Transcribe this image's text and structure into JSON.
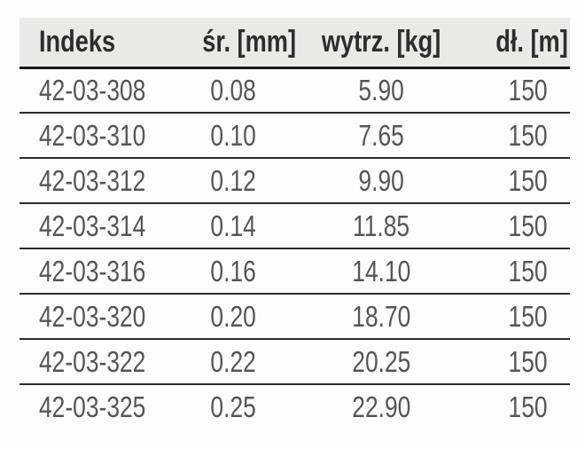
{
  "table": {
    "columns": [
      {
        "label": "Indeks",
        "align": "left"
      },
      {
        "label": "śr. [mm]",
        "align": "center"
      },
      {
        "label": "wytrz. [kg]",
        "align": "center"
      },
      {
        "label": "dł. [m]",
        "align": "center"
      }
    ],
    "rows": [
      [
        "42-03-308",
        "0.08",
        "5.90",
        "150"
      ],
      [
        "42-03-310",
        "0.10",
        "7.65",
        "150"
      ],
      [
        "42-03-312",
        "0.12",
        "9.90",
        "150"
      ],
      [
        "42-03-314",
        "0.14",
        "11.85",
        "150"
      ],
      [
        "42-03-316",
        "0.16",
        "14.10",
        "150"
      ],
      [
        "42-03-320",
        "0.20",
        "18.70",
        "150"
      ],
      [
        "42-03-322",
        "0.22",
        "20.25",
        "150"
      ],
      [
        "42-03-325",
        "0.25",
        "22.90",
        "150"
      ]
    ]
  },
  "colors": {
    "header_bg": "#e9e9e8",
    "header_text": "#2d2d2d",
    "body_text": "#555555",
    "rule_thick": "#161616",
    "rule_thin": "#2b2b2b",
    "page_bg": "#fdfdfd"
  }
}
